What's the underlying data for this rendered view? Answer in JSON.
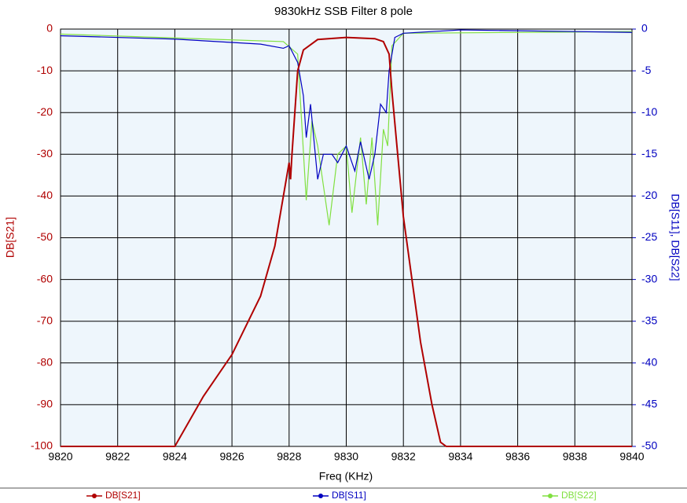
{
  "chart_data": {
    "type": "line",
    "title": "9830kHz SSB Filter 8 pole",
    "x_label": "Freq (KHz)",
    "y_label": "DB[S21]",
    "y2_label": "DB[S11], DB[S22]",
    "xlim": [
      9820,
      9840
    ],
    "xticks": [
      9820,
      9822,
      9824,
      9826,
      9828,
      9830,
      9832,
      9834,
      9836,
      9838,
      9840
    ],
    "ylim": [
      -100,
      0
    ],
    "yticks": [
      -100,
      -90,
      -80,
      -70,
      -60,
      -50,
      -40,
      -30,
      -20,
      -10,
      0
    ],
    "y2lim": [
      -50,
      0
    ],
    "y2ticks": [
      -50,
      -45,
      -40,
      -35,
      -30,
      -25,
      -20,
      -15,
      -10,
      -5,
      0
    ],
    "grid": true,
    "legend": "bottom",
    "series": [
      {
        "name": "DB[S21]",
        "color": "#b00000",
        "x": [
          9820,
          9824,
          9825,
          9826,
          9827,
          9827.5,
          9827.8,
          9828,
          9828.05,
          9828.1,
          9828.2,
          9828.3,
          9828.5,
          9829,
          9830,
          9831,
          9831.3,
          9831.5,
          9831.6,
          9831.8,
          9832,
          9832.3,
          9832.6,
          9833,
          9833.3,
          9833.5,
          9840
        ],
        "values": [
          -100,
          -100,
          -88,
          -78,
          -64,
          -52,
          -40,
          -32,
          -36,
          -30,
          -20,
          -10,
          -5,
          -2.5,
          -2,
          -2.3,
          -3,
          -6,
          -15,
          -30,
          -45,
          -60,
          -75,
          -90,
          -99,
          -100,
          -100
        ]
      },
      {
        "name": "DB[S11]",
        "color": "#0000c0",
        "axis": "y2",
        "x": [
          9820,
          9824,
          9827,
          9827.8,
          9828,
          9828.3,
          9828.5,
          9828.6,
          9828.75,
          9829,
          9829.2,
          9829.5,
          9829.7,
          9830,
          9830.3,
          9830.5,
          9830.8,
          9831,
          9831.2,
          9831.4,
          9831.5,
          9831.7,
          9832,
          9834,
          9838,
          9840
        ],
        "values": [
          -0.8,
          -1.2,
          -1.8,
          -2.3,
          -2,
          -4,
          -8,
          -13,
          -9,
          -18,
          -15,
          -15,
          -16,
          -14,
          -17,
          -13.5,
          -18,
          -15,
          -9,
          -10,
          -5,
          -1,
          -0.5,
          -0.1,
          -0.3,
          -0.4
        ]
      },
      {
        "name": "DB[S22]",
        "color": "#80e040",
        "axis": "y2",
        "x": [
          9820,
          9827.8,
          9828.3,
          9828.6,
          9828.8,
          9829,
          9829.4,
          9829.7,
          9830,
          9830.2,
          9830.5,
          9830.7,
          9830.9,
          9831.1,
          9831.3,
          9831.45,
          9831.6,
          9832,
          9840
        ],
        "values": [
          -0.6,
          -1.5,
          -3,
          -20.5,
          -11,
          -14,
          -23.5,
          -15,
          -14,
          -22,
          -13,
          -21,
          -13,
          -23.5,
          -12,
          -14,
          -2,
          -0.5,
          -0.3
        ]
      }
    ]
  }
}
